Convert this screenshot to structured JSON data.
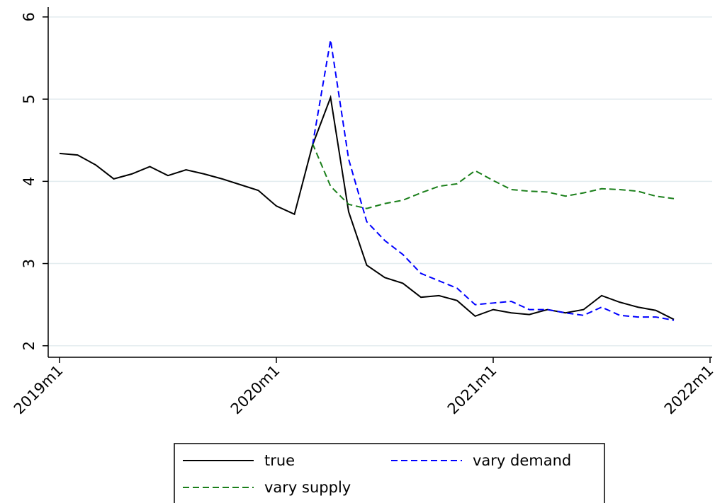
{
  "chart_data": {
    "type": "line",
    "x": [
      "2019m1",
      "2019m2",
      "2019m3",
      "2019m4",
      "2019m5",
      "2019m6",
      "2019m7",
      "2019m8",
      "2019m9",
      "2019m10",
      "2019m11",
      "2019m12",
      "2020m1",
      "2020m2",
      "2020m3",
      "2020m4",
      "2020m5",
      "2020m6",
      "2020m7",
      "2020m8",
      "2020m9",
      "2020m10",
      "2020m11",
      "2020m12",
      "2021m1",
      "2021m2",
      "2021m3",
      "2021m4",
      "2021m5",
      "2021m6",
      "2021m7",
      "2021m8",
      "2021m9",
      "2021m10",
      "2021m11"
    ],
    "series": [
      {
        "name": "true",
        "color": "#000000",
        "dash": false,
        "values": [
          4.34,
          4.32,
          4.2,
          4.03,
          4.09,
          4.18,
          4.07,
          4.14,
          4.09,
          4.03,
          3.96,
          3.89,
          3.7,
          3.6,
          4.44,
          5.02,
          3.63,
          2.98,
          2.83,
          2.76,
          2.59,
          2.61,
          2.55,
          2.36,
          2.44,
          2.4,
          2.38,
          2.44,
          2.4,
          2.44,
          2.61,
          2.53,
          2.47,
          2.43,
          2.32
        ]
      },
      {
        "name": "vary demand",
        "color": "#0000ff",
        "dash": true,
        "values": [
          null,
          null,
          null,
          null,
          null,
          null,
          null,
          null,
          null,
          null,
          null,
          null,
          null,
          null,
          4.44,
          5.72,
          4.27,
          3.51,
          3.28,
          3.11,
          2.88,
          2.79,
          2.7,
          2.5,
          2.52,
          2.54,
          2.44,
          2.44,
          2.4,
          2.37,
          2.47,
          2.37,
          2.35,
          2.35,
          2.31
        ]
      },
      {
        "name": "vary supply",
        "color": "#1a7f1a",
        "dash": true,
        "values": [
          null,
          null,
          null,
          null,
          null,
          null,
          null,
          null,
          null,
          null,
          null,
          null,
          null,
          null,
          4.46,
          3.94,
          3.72,
          3.67,
          3.73,
          3.77,
          3.86,
          3.94,
          3.97,
          4.13,
          4.01,
          3.9,
          3.88,
          3.87,
          3.82,
          3.86,
          3.91,
          3.9,
          3.88,
          3.82,
          3.79
        ]
      }
    ],
    "xlim": [
      "2019m1",
      "2022m1"
    ],
    "xticks": [
      "2019m1",
      "2020m1",
      "2021m1",
      "2022m1"
    ],
    "ylim": [
      1.86,
      6.12
    ],
    "yticks": [
      2,
      3,
      4,
      5,
      6
    ],
    "grid": true,
    "legend": "bottom"
  }
}
